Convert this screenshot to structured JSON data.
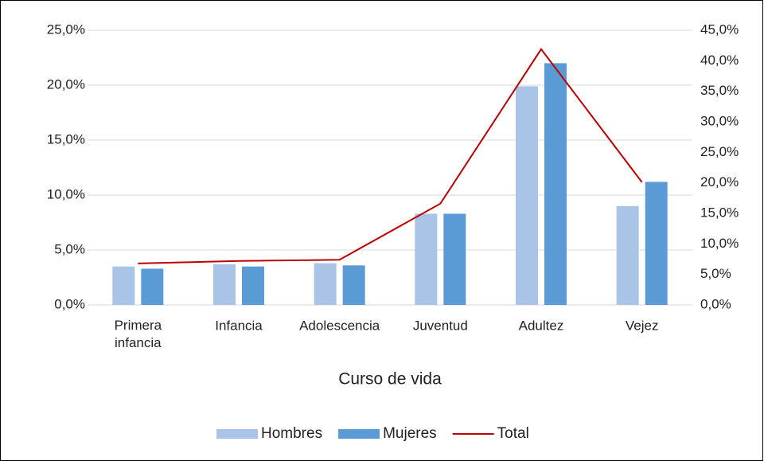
{
  "chart_data": {
    "type": "bar-line",
    "x_label": "Curso de vida",
    "categories": [
      "Primera infancia",
      "Infancia",
      "Adolescencia",
      "Juventud",
      "Adultez",
      "Vejez"
    ],
    "series": [
      {
        "name": "Hombres",
        "color": "#a9c4e6",
        "type": "bar",
        "values": [
          3.5,
          3.7,
          3.8,
          8.3,
          19.9,
          9.0
        ]
      },
      {
        "name": "Mujeres",
        "color": "#5b9bd5",
        "type": "bar",
        "values": [
          3.3,
          3.5,
          3.6,
          8.3,
          22.0,
          11.2
        ]
      },
      {
        "name": "Total",
        "color": "#c00000",
        "type": "line",
        "axis": "y2",
        "values": [
          6.8,
          7.2,
          7.4,
          16.6,
          41.9,
          20.1
        ]
      }
    ],
    "ylim": [
      0,
      25
    ],
    "yticks": [
      {
        "value": 0,
        "label": "0,0%"
      },
      {
        "value": 5,
        "label": "5,0%"
      },
      {
        "value": 10,
        "label": "10,0%"
      },
      {
        "value": 15,
        "label": "15,0%"
      },
      {
        "value": 20,
        "label": "20,0%"
      },
      {
        "value": 25,
        "label": "25,0%"
      }
    ],
    "y2lim": [
      0,
      45
    ],
    "y2ticks": [
      {
        "value": 0,
        "label": "0,0%"
      },
      {
        "value": 5,
        "label": "5,0%"
      },
      {
        "value": 10,
        "label": "10,0%"
      },
      {
        "value": 15,
        "label": "15,0%"
      },
      {
        "value": 20,
        "label": "20,0%"
      },
      {
        "value": 25,
        "label": "25,0%"
      },
      {
        "value": 30,
        "label": "30,0%"
      },
      {
        "value": 35,
        "label": "35,0%"
      },
      {
        "value": 40,
        "label": "40,0%"
      },
      {
        "value": 45,
        "label": "45,0%"
      }
    ],
    "grid": true,
    "legend": "bottom"
  }
}
